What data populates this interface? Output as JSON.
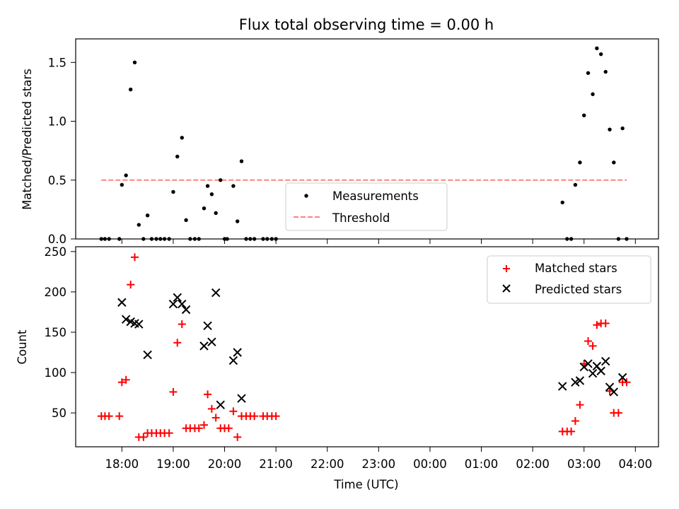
{
  "chart_data": [
    {
      "type": "scatter",
      "title": "Flux total observing time = 0.00 h",
      "xlabel": "",
      "ylabel": "Matched/Predicted stars",
      "xlim": [
        17.1,
        28.45
      ],
      "ylim": [
        0,
        1.7
      ],
      "yticks": [
        0.0,
        0.5,
        1.0,
        1.5
      ],
      "ytick_labels": [
        "0.0",
        "0.5",
        "1.0",
        "1.5"
      ],
      "legend": {
        "placement": "lower-center",
        "entries": [
          "Measurements",
          "Threshold"
        ]
      },
      "series": [
        {
          "name": "Measurements",
          "marker": "dot",
          "color": "#000000",
          "points": [
            [
              17.6,
              0
            ],
            [
              17.67,
              0
            ],
            [
              17.75,
              0
            ],
            [
              17.95,
              0
            ],
            [
              18.0,
              0.46
            ],
            [
              18.08,
              0.54
            ],
            [
              18.17,
              1.27
            ],
            [
              18.25,
              1.5
            ],
            [
              18.33,
              0.12
            ],
            [
              18.42,
              0
            ],
            [
              18.5,
              0.2
            ],
            [
              18.58,
              0
            ],
            [
              18.67,
              0
            ],
            [
              18.75,
              0
            ],
            [
              18.83,
              0
            ],
            [
              18.92,
              0
            ],
            [
              19.0,
              0.4
            ],
            [
              19.08,
              0.7
            ],
            [
              19.17,
              0.86
            ],
            [
              19.25,
              0.16
            ],
            [
              19.33,
              0
            ],
            [
              19.42,
              0
            ],
            [
              19.5,
              0
            ],
            [
              19.6,
              0.26
            ],
            [
              19.67,
              0.45
            ],
            [
              19.75,
              0.38
            ],
            [
              19.83,
              0.22
            ],
            [
              19.92,
              0.5
            ],
            [
              20.0,
              0
            ],
            [
              20.05,
              0
            ],
            [
              20.17,
              0.45
            ],
            [
              20.25,
              0.15
            ],
            [
              20.33,
              0.66
            ],
            [
              20.42,
              0
            ],
            [
              20.5,
              0
            ],
            [
              20.58,
              0
            ],
            [
              20.75,
              0
            ],
            [
              20.83,
              0
            ],
            [
              20.92,
              0
            ],
            [
              21.0,
              0
            ],
            [
              26.58,
              0.31
            ],
            [
              26.67,
              0
            ],
            [
              26.75,
              0
            ],
            [
              26.83,
              0.46
            ],
            [
              26.92,
              0.65
            ],
            [
              27.0,
              1.05
            ],
            [
              27.08,
              1.41
            ],
            [
              27.17,
              1.23
            ],
            [
              27.25,
              1.62
            ],
            [
              27.33,
              1.57
            ],
            [
              27.42,
              1.42
            ],
            [
              27.5,
              0.93
            ],
            [
              27.58,
              0.65
            ],
            [
              27.67,
              0
            ],
            [
              27.75,
              0.94
            ],
            [
              27.83,
              0
            ]
          ]
        },
        {
          "name": "Threshold",
          "style": "dashed",
          "color": "#ff8080",
          "x": [
            17.6,
            27.83
          ],
          "y": [
            0.5,
            0.5
          ]
        }
      ]
    },
    {
      "type": "scatter",
      "title": "",
      "xlabel": "Time (UTC)",
      "ylabel": "Count",
      "xlim": [
        17.1,
        28.45
      ],
      "ylim": [
        8,
        256
      ],
      "yticks": [
        50,
        100,
        150,
        200,
        250
      ],
      "ytick_labels": [
        "50",
        "100",
        "150",
        "200",
        "250"
      ],
      "xticks": [
        18,
        19,
        20,
        21,
        22,
        23,
        24,
        25,
        26,
        27,
        28
      ],
      "xtick_labels": [
        "18:00",
        "19:00",
        "20:00",
        "21:00",
        "22:00",
        "23:00",
        "00:00",
        "01:00",
        "02:00",
        "03:00",
        "04:00"
      ],
      "legend": {
        "placement": "top-right",
        "entries": [
          "Matched stars",
          "Predicted stars"
        ]
      },
      "series": [
        {
          "name": "Matched stars",
          "marker": "plus",
          "color": "#ff0000",
          "points": [
            [
              17.6,
              46
            ],
            [
              17.67,
              46
            ],
            [
              17.75,
              46
            ],
            [
              17.95,
              46
            ],
            [
              18.0,
              88
            ],
            [
              18.08,
              91
            ],
            [
              18.17,
              209
            ],
            [
              18.25,
              243
            ],
            [
              18.33,
              20
            ],
            [
              18.42,
              20
            ],
            [
              18.5,
              25
            ],
            [
              18.58,
              25
            ],
            [
              18.67,
              25
            ],
            [
              18.75,
              25
            ],
            [
              18.83,
              25
            ],
            [
              18.92,
              25
            ],
            [
              19.0,
              76
            ],
            [
              19.08,
              137
            ],
            [
              19.17,
              160
            ],
            [
              19.25,
              31
            ],
            [
              19.33,
              31
            ],
            [
              19.42,
              31
            ],
            [
              19.5,
              31
            ],
            [
              19.6,
              35
            ],
            [
              19.67,
              73
            ],
            [
              19.75,
              55
            ],
            [
              19.83,
              44
            ],
            [
              19.92,
              31
            ],
            [
              20.0,
              31
            ],
            [
              20.08,
              31
            ],
            [
              20.17,
              52
            ],
            [
              20.25,
              20
            ],
            [
              20.33,
              46
            ],
            [
              20.42,
              46
            ],
            [
              20.5,
              46
            ],
            [
              20.58,
              46
            ],
            [
              20.75,
              46
            ],
            [
              20.83,
              46
            ],
            [
              20.92,
              46
            ],
            [
              21.0,
              46
            ],
            [
              26.58,
              27
            ],
            [
              26.67,
              27
            ],
            [
              26.75,
              27
            ],
            [
              26.83,
              40
            ],
            [
              26.92,
              60
            ],
            [
              27.0,
              111
            ],
            [
              27.08,
              139
            ],
            [
              27.17,
              133
            ],
            [
              27.25,
              159
            ],
            [
              27.33,
              161
            ],
            [
              27.42,
              161
            ],
            [
              27.5,
              77
            ],
            [
              27.58,
              50
            ],
            [
              27.67,
              50
            ],
            [
              27.75,
              88
            ],
            [
              27.83,
              88
            ]
          ]
        },
        {
          "name": "Predicted stars",
          "marker": "x",
          "color": "#000000",
          "points": [
            [
              18.0,
              187
            ],
            [
              18.08,
              166
            ],
            [
              18.17,
              163
            ],
            [
              18.25,
              161
            ],
            [
              18.33,
              160
            ],
            [
              18.5,
              122
            ],
            [
              19.0,
              185
            ],
            [
              19.08,
              193
            ],
            [
              19.17,
              185
            ],
            [
              19.25,
              178
            ],
            [
              19.6,
              133
            ],
            [
              19.67,
              158
            ],
            [
              19.75,
              138
            ],
            [
              19.83,
              199
            ],
            [
              19.92,
              60
            ],
            [
              20.17,
              115
            ],
            [
              20.25,
              125
            ],
            [
              20.33,
              68
            ],
            [
              26.58,
              83
            ],
            [
              26.83,
              88
            ],
            [
              26.92,
              90
            ],
            [
              27.0,
              107
            ],
            [
              27.08,
              111
            ],
            [
              27.17,
              99
            ],
            [
              27.25,
              108
            ],
            [
              27.33,
              102
            ],
            [
              27.42,
              114
            ],
            [
              27.5,
              82
            ],
            [
              27.58,
              76
            ],
            [
              27.75,
              94
            ]
          ]
        }
      ]
    }
  ]
}
